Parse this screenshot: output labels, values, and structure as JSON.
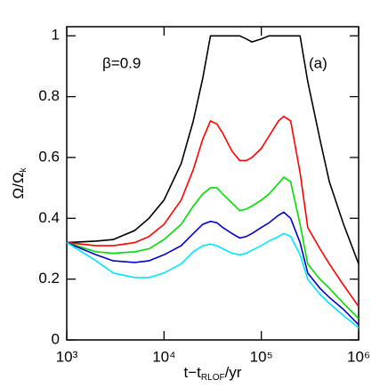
{
  "chart_data": {
    "type": "line",
    "xscale": "log",
    "xlabel_parts": [
      "t−t",
      "RLOF",
      "/yr"
    ],
    "ylabel_parts": [
      "Ω/Ω",
      "k"
    ],
    "annotations": [
      "β=0.9",
      "(a)"
    ],
    "x": [
      1000,
      2000,
      3000,
      5000,
      7000,
      10000,
      15000,
      20000,
      25000,
      30000,
      35000,
      40000,
      50000,
      60000,
      70000,
      80000,
      100000,
      120000,
      150000,
      170000,
      200000,
      250000,
      300000,
      400000,
      500000,
      700000,
      1000000
    ],
    "series": [
      {
        "color": "#000000",
        "values": [
          0.32,
          0.325,
          0.33,
          0.36,
          0.4,
          0.46,
          0.58,
          0.72,
          0.86,
          1.0,
          1.0,
          1.0,
          1.0,
          1.0,
          0.99,
          0.98,
          0.99,
          1.0,
          1.0,
          1.0,
          1.0,
          1.0,
          0.85,
          0.66,
          0.52,
          0.38,
          0.25
        ]
      },
      {
        "color": "#ff0000",
        "values": [
          0.32,
          0.31,
          0.31,
          0.32,
          0.34,
          0.38,
          0.46,
          0.56,
          0.66,
          0.72,
          0.71,
          0.68,
          0.62,
          0.59,
          0.59,
          0.6,
          0.63,
          0.67,
          0.72,
          0.735,
          0.72,
          0.55,
          0.37,
          0.3,
          0.25,
          0.18,
          0.11
        ]
      },
      {
        "color": "#00dd00",
        "values": [
          0.32,
          0.29,
          0.285,
          0.29,
          0.3,
          0.33,
          0.38,
          0.44,
          0.48,
          0.5,
          0.5,
          0.48,
          0.45,
          0.425,
          0.43,
          0.44,
          0.46,
          0.48,
          0.515,
          0.535,
          0.52,
          0.38,
          0.25,
          0.2,
          0.17,
          0.12,
          0.07
        ]
      },
      {
        "color": "#0000cc",
        "values": [
          0.32,
          0.28,
          0.26,
          0.255,
          0.26,
          0.28,
          0.31,
          0.35,
          0.38,
          0.39,
          0.385,
          0.37,
          0.35,
          0.335,
          0.34,
          0.35,
          0.37,
          0.385,
          0.41,
          0.42,
          0.4,
          0.32,
          0.22,
          0.17,
          0.14,
          0.1,
          0.05
        ]
      },
      {
        "color": "#00e5ff",
        "values": [
          0.32,
          0.26,
          0.22,
          0.205,
          0.205,
          0.22,
          0.25,
          0.29,
          0.31,
          0.315,
          0.31,
          0.3,
          0.285,
          0.28,
          0.285,
          0.295,
          0.31,
          0.325,
          0.34,
          0.35,
          0.34,
          0.28,
          0.2,
          0.15,
          0.12,
          0.08,
          0.04
        ]
      }
    ],
    "xlim": [
      1000,
      1000000
    ],
    "xticks": [
      {
        "value": 1000,
        "label": "10³"
      },
      {
        "value": 10000,
        "label": "10⁴"
      },
      {
        "value": 100000,
        "label": "10⁵"
      },
      {
        "value": 1000000,
        "label": "10⁶"
      }
    ],
    "ylim": [
      0,
      1.03
    ],
    "yticks": [
      0,
      0.2,
      0.4,
      0.6,
      0.8,
      1
    ]
  }
}
